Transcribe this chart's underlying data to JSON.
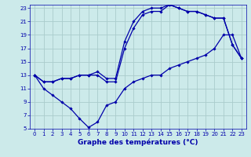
{
  "title": "Graphe des températures (°C)",
  "background_color": "#cceaea",
  "grid_color": "#aacccc",
  "line_color": "#0000aa",
  "xlim": [
    -0.5,
    23.5
  ],
  "ylim": [
    5,
    23.5
  ],
  "xticks": [
    0,
    1,
    2,
    3,
    4,
    5,
    6,
    7,
    8,
    9,
    10,
    11,
    12,
    13,
    14,
    15,
    16,
    17,
    18,
    19,
    20,
    21,
    22,
    23
  ],
  "yticks": [
    5,
    7,
    9,
    11,
    13,
    15,
    17,
    19,
    21,
    23
  ],
  "series": [
    {
      "x": [
        0,
        1,
        2,
        3,
        4,
        5,
        6,
        7,
        8,
        9,
        10,
        11,
        12,
        13,
        14,
        15,
        16,
        17,
        18,
        19,
        20,
        21,
        22,
        23
      ],
      "y": [
        13,
        11,
        10,
        9,
        8,
        6.5,
        5.2,
        6,
        8.5,
        9,
        11,
        12,
        12.5,
        13,
        13,
        14,
        14.5,
        15,
        15.5,
        16,
        17,
        19,
        19,
        15.5
      ]
    },
    {
      "x": [
        0,
        1,
        2,
        3,
        4,
        5,
        6,
        7,
        8,
        9,
        10,
        11,
        12,
        13,
        14,
        15,
        16,
        17,
        18,
        19,
        20,
        21,
        22,
        23
      ],
      "y": [
        13,
        12,
        12,
        12.5,
        12.5,
        13,
        13,
        13,
        12,
        12,
        17,
        20,
        22,
        22.5,
        22.5,
        23.5,
        23,
        22.5,
        22.5,
        22,
        21.5,
        21.5,
        17.5,
        15.5
      ]
    },
    {
      "x": [
        0,
        1,
        2,
        3,
        4,
        5,
        6,
        7,
        8,
        9,
        10,
        11,
        12,
        13,
        14,
        15,
        16,
        17,
        18,
        19,
        20,
        21,
        22,
        23
      ],
      "y": [
        13,
        12,
        12,
        12.5,
        12.5,
        13,
        13,
        13.5,
        12.5,
        12.5,
        18,
        21,
        22.5,
        23,
        23,
        23.5,
        23,
        22.5,
        22.5,
        22,
        21.5,
        21.5,
        17.5,
        15.5
      ]
    }
  ]
}
